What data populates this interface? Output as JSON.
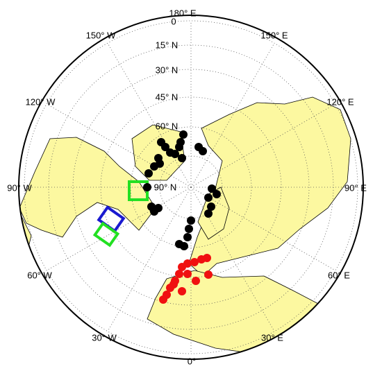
{
  "map": {
    "longitude_labels": [
      "180° E",
      "150° E",
      "120° E",
      "90° E",
      "60° E",
      "30° E",
      "0°",
      "30° W",
      "60° W",
      "90° W",
      "120° W",
      "150° W"
    ],
    "latitude_labels": [
      "0",
      "15° N",
      "30° N",
      "45° N",
      "60° N",
      "90° N"
    ]
  }
}
